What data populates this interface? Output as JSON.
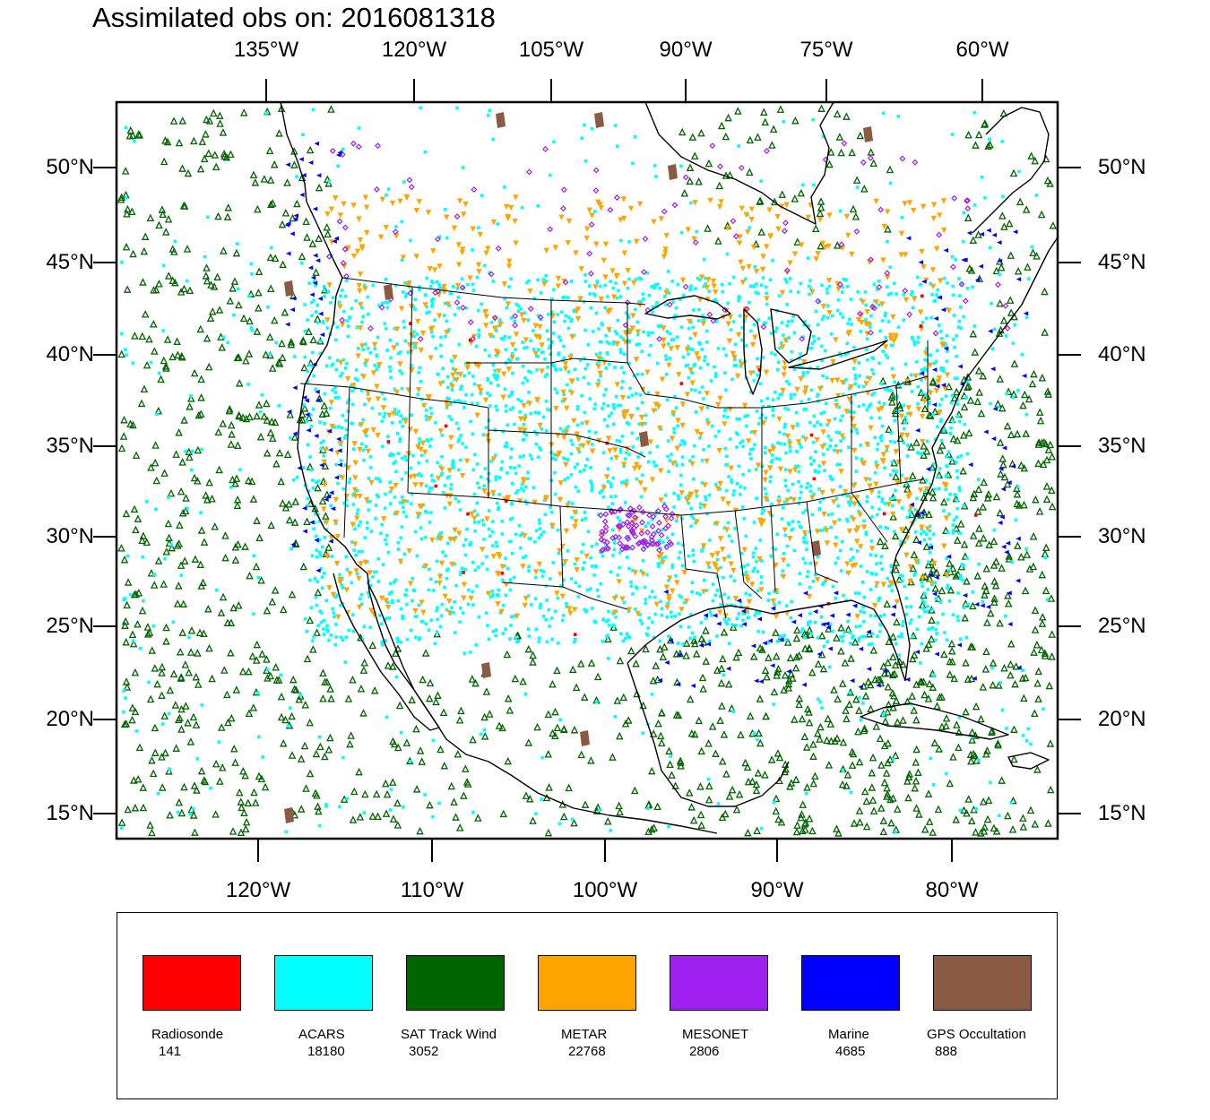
{
  "title": "Assimilated obs on: 2016081318",
  "top_lon_labels": [
    "135°W",
    "120°W",
    "105°W",
    "90°W",
    "75°W",
    "60°W"
  ],
  "bottom_lon_labels": [
    "120°W",
    "110°W",
    "100°W",
    "90°W",
    "80°W"
  ],
  "lat_labels": [
    "50°N",
    "45°N",
    "40°N",
    "35°N",
    "30°N",
    "25°N",
    "20°N",
    "15°N"
  ],
  "legend": [
    {
      "name": "Radiosonde",
      "count": "141",
      "color": "#ff0000"
    },
    {
      "name": "ACARS",
      "count": "18180",
      "color": "#00ffff"
    },
    {
      "name": "SAT Track Wind",
      "count": "3052",
      "color": "#006400"
    },
    {
      "name": "METAR",
      "count": "22768",
      "color": "#ffa500"
    },
    {
      "name": "MESONET",
      "count": "2806",
      "color": "#a020f0"
    },
    {
      "name": "Marine",
      "count": "4685",
      "color": "#0000ff"
    },
    {
      "name": "GPS Occultation",
      "count": "888",
      "color": "#8b5a44"
    }
  ]
}
